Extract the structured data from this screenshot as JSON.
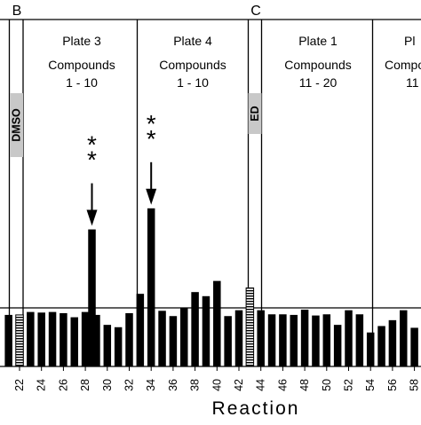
{
  "chart_data": {
    "type": "bar",
    "panel_letters": [
      "B",
      "C"
    ],
    "xlabel": "Reaction",
    "x_tick_labels": [
      "22",
      "24",
      "26",
      "28",
      "30",
      "32",
      "34",
      "36",
      "38",
      "40",
      "42",
      "44",
      "46",
      "48",
      "50",
      "52",
      "54",
      "56",
      "58"
    ],
    "sections": [
      {
        "name": "Plate 3",
        "line1": "Compounds",
        "line2": "1 - 10",
        "from": 23,
        "to": 32
      },
      {
        "name": "Plate 4",
        "line1": "Compounds",
        "line2": "1 - 10",
        "from": 33,
        "to": 42
      },
      {
        "name": "Plate 1",
        "line1": "Compounds",
        "line2": "11 - 20",
        "from": 44,
        "to": 53
      },
      {
        "name": "Pl",
        "line1": "Compounds",
        "line2": "11",
        "from": 54,
        "to": 59
      }
    ],
    "control_labels": [
      {
        "text": "DMSO",
        "reaction": 22
      },
      {
        "text": "ED",
        "reaction": 43
      }
    ],
    "baseline_level": 1.0,
    "annotations": [
      {
        "text": "**",
        "reaction": 28
      },
      {
        "text": "**",
        "reaction": 34
      }
    ],
    "bars": [
      {
        "x": 21,
        "value": 0.88,
        "style": "solid"
      },
      {
        "x": 22,
        "value": 0.88,
        "style": "hatched"
      },
      {
        "x": 23,
        "value": 0.93,
        "style": "solid"
      },
      {
        "x": 24,
        "value": 0.92,
        "style": "solid"
      },
      {
        "x": 25,
        "value": 0.93,
        "style": "solid"
      },
      {
        "x": 26,
        "value": 0.91,
        "style": "solid"
      },
      {
        "x": 27,
        "value": 0.84,
        "style": "solid"
      },
      {
        "x": 28,
        "value": 0.93,
        "style": "solid"
      },
      {
        "x": 28.6,
        "value": 2.34,
        "style": "solid"
      },
      {
        "x": 29,
        "value": 0.88,
        "style": "solid"
      },
      {
        "x": 30,
        "value": 0.71,
        "style": "solid"
      },
      {
        "x": 31,
        "value": 0.67,
        "style": "solid"
      },
      {
        "x": 32,
        "value": 0.91,
        "style": "solid"
      },
      {
        "x": 33,
        "value": 1.24,
        "style": "solid"
      },
      {
        "x": 34,
        "value": 2.7,
        "style": "solid"
      },
      {
        "x": 35,
        "value": 0.95,
        "style": "solid"
      },
      {
        "x": 36,
        "value": 0.86,
        "style": "solid"
      },
      {
        "x": 37,
        "value": 1.0,
        "style": "solid"
      },
      {
        "x": 38,
        "value": 1.27,
        "style": "solid"
      },
      {
        "x": 39,
        "value": 1.2,
        "style": "solid"
      },
      {
        "x": 40,
        "value": 1.46,
        "style": "solid"
      },
      {
        "x": 41,
        "value": 0.86,
        "style": "solid"
      },
      {
        "x": 42,
        "value": 0.96,
        "style": "solid"
      },
      {
        "x": 43,
        "value": 1.34,
        "style": "hatched"
      },
      {
        "x": 44,
        "value": 0.96,
        "style": "solid"
      },
      {
        "x": 45,
        "value": 0.89,
        "style": "solid"
      },
      {
        "x": 46,
        "value": 0.89,
        "style": "solid"
      },
      {
        "x": 47,
        "value": 0.88,
        "style": "solid"
      },
      {
        "x": 48,
        "value": 0.97,
        "style": "solid"
      },
      {
        "x": 49,
        "value": 0.87,
        "style": "solid"
      },
      {
        "x": 50,
        "value": 0.89,
        "style": "solid"
      },
      {
        "x": 51,
        "value": 0.71,
        "style": "solid"
      },
      {
        "x": 52,
        "value": 0.96,
        "style": "solid"
      },
      {
        "x": 53,
        "value": 0.89,
        "style": "solid"
      },
      {
        "x": 54,
        "value": 0.58,
        "style": "solid"
      },
      {
        "x": 55,
        "value": 0.69,
        "style": "solid"
      },
      {
        "x": 56,
        "value": 0.79,
        "style": "solid"
      },
      {
        "x": 57,
        "value": 0.96,
        "style": "solid"
      },
      {
        "x": 58,
        "value": 0.66,
        "style": "solid"
      },
      {
        "x": 59,
        "value": 0.86,
        "style": "solid"
      }
    ],
    "colors": {
      "bar": "#000000",
      "control_label_bg": "#c8c8c8",
      "divider": "#000000"
    }
  }
}
